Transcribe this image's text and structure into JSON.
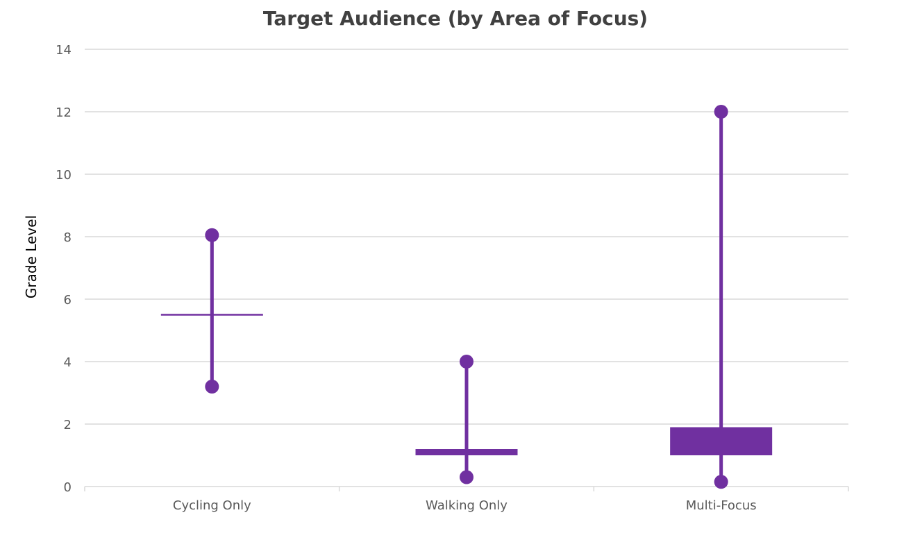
{
  "chart_data": {
    "type": "box",
    "title": "Target Audience (by Area of Focus)",
    "xlabel": "",
    "ylabel": "Grade Level",
    "ylim": [
      0,
      14
    ],
    "yticks": [
      0,
      2,
      4,
      6,
      8,
      10,
      12,
      14
    ],
    "grid": true,
    "categories": [
      "Cycling Only",
      "Walking Only",
      "Multi-Focus"
    ],
    "series": [
      {
        "max": 8.05,
        "q3": 5.5,
        "q1": 5.5,
        "min": 3.2
      },
      {
        "max": 4.0,
        "q3": 1.2,
        "q1": 1.0,
        "min": 0.3
      },
      {
        "max": 12.0,
        "q3": 1.9,
        "q1": 1.0,
        "min": 0.15
      }
    ],
    "color": "#7030A0"
  }
}
